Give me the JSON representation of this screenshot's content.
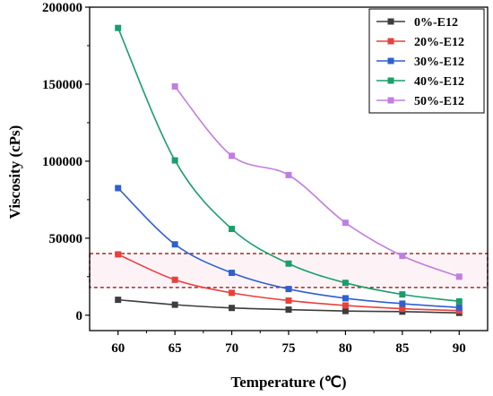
{
  "chart_data": {
    "type": "scatter",
    "title": "",
    "xlabel": "Temperature (℃)",
    "ylabel": "Viscosity (cPs)",
    "x": [
      60,
      65,
      70,
      75,
      80,
      85,
      90
    ],
    "x_ticks": [
      "60",
      "65",
      "70",
      "75",
      "80",
      "85",
      "90"
    ],
    "y_ticks": [
      "0",
      "50000",
      "100000",
      "150000",
      "200000"
    ],
    "xlim": [
      57.5,
      92.5
    ],
    "ylim": [
      -10000,
      200000
    ],
    "grid": false,
    "legend_position": "top-right",
    "series": [
      {
        "name": "0%-E12",
        "color": "#3d3d3d",
        "values": [
          10000,
          6800,
          4700,
          3600,
          2700,
          2300,
          1500
        ]
      },
      {
        "name": "20%-E12",
        "color": "#e8413c",
        "values": [
          39500,
          23000,
          14500,
          9500,
          6300,
          4200,
          3000
        ]
      },
      {
        "name": "30%-E12",
        "color": "#2f5fd0",
        "values": [
          82500,
          46000,
          27500,
          17000,
          11000,
          7500,
          5000
        ]
      },
      {
        "name": "40%-E12",
        "color": "#1a9e6a",
        "values": [
          186500,
          100500,
          56000,
          33500,
          21000,
          13500,
          9000
        ]
      },
      {
        "name": "50%-E12",
        "color": "#c07ee0",
        "values": [
          null,
          148500,
          103500,
          91000,
          60000,
          38500,
          25000
        ]
      }
    ],
    "annotations": [
      {
        "type": "dashed-band",
        "y_range": [
          18000,
          40000
        ],
        "color": "#a52a2a"
      }
    ]
  }
}
